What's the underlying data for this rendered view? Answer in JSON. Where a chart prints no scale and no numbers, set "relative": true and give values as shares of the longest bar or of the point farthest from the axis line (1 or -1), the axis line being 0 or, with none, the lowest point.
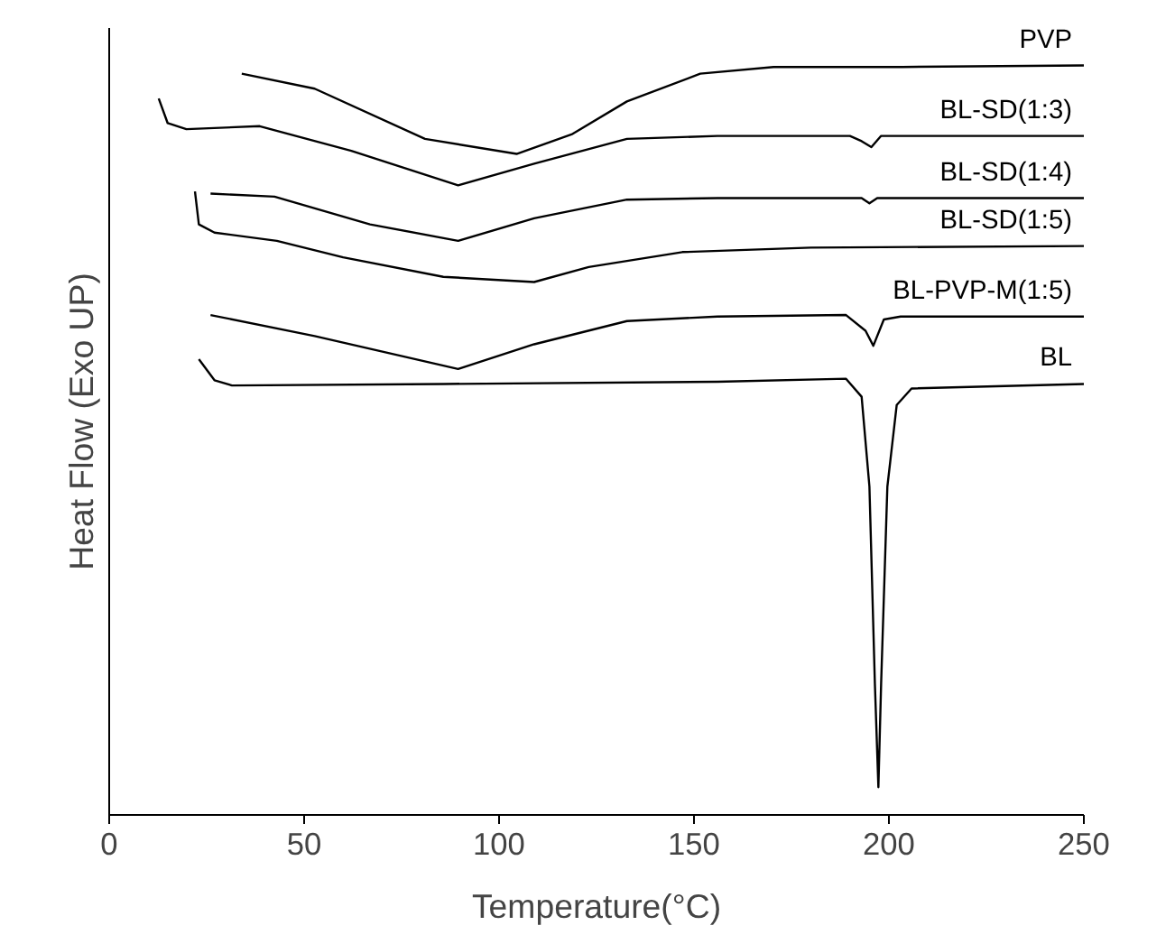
{
  "chart_data": {
    "type": "line",
    "relative": true,
    "xlabel": "Temperature(°C)",
    "ylabel": "Heat Flow (Exo UP)",
    "xlim": [
      0,
      250
    ],
    "xticks": [
      0,
      50,
      100,
      150,
      200,
      250
    ],
    "grid": false,
    "line_style": "solid",
    "tick_labels": "x",
    "series": [
      {
        "name": "PVP",
        "color": "#000000",
        "x": [
          34,
          52.7,
          81,
          104.5,
          118.6,
          132.8,
          151.6,
          170.4,
          203.4,
          250
        ],
        "values": [
          0.989,
          0.969,
          0.902,
          0.882,
          0.908,
          0.952,
          0.989,
          0.998,
          0.998,
          1.0
        ]
      },
      {
        "name": "BL-SD(1:3)",
        "color": "#000000",
        "x": [
          12.7,
          15,
          19.8,
          38.6,
          62.1,
          89.5,
          109,
          132.8,
          156,
          190,
          193,
          195.5,
          198,
          250
        ],
        "values": [
          0.956,
          0.923,
          0.915,
          0.919,
          0.886,
          0.84,
          0.869,
          0.902,
          0.906,
          0.906,
          0.899,
          0.891,
          0.906,
          0.906
        ]
      },
      {
        "name": "BL-SD(1:4)",
        "color": "#000000",
        "x": [
          26,
          42.4,
          66.9,
          89.5,
          109,
          132.8,
          156,
          193,
          195,
          197,
          250
        ],
        "values": [
          0.829,
          0.825,
          0.788,
          0.766,
          0.796,
          0.821,
          0.823,
          0.823,
          0.816,
          0.823,
          0.823
        ]
      },
      {
        "name": "BL-SD(1:5)",
        "color": "#000000",
        "x": [
          22,
          23,
          27,
          43,
          60,
          85.7,
          109,
          123,
          147,
          180,
          250
        ],
        "values": [
          0.832,
          0.788,
          0.777,
          0.766,
          0.744,
          0.718,
          0.711,
          0.731,
          0.751,
          0.757,
          0.759
        ]
      },
      {
        "name": "BL-PVP-M(1:5)",
        "color": "#000000",
        "x": [
          26,
          52.7,
          89.5,
          109,
          132.8,
          156,
          189,
          194,
          196,
          198.7,
          203,
          250
        ],
        "values": [
          0.667,
          0.639,
          0.595,
          0.628,
          0.659,
          0.665,
          0.667,
          0.646,
          0.626,
          0.661,
          0.665,
          0.665
        ]
      },
      {
        "name": "BL",
        "color": "#000000",
        "x": [
          23,
          27,
          31.5,
          85.7,
          156,
          189,
          193,
          195,
          196.4,
          197.3,
          198,
          199.6,
          202,
          205.8,
          250
        ],
        "values": [
          0.608,
          0.58,
          0.573,
          0.575,
          0.578,
          0.582,
          0.558,
          0.438,
          0.175,
          0.037,
          0.175,
          0.438,
          0.547,
          0.569,
          0.575
        ]
      }
    ]
  }
}
